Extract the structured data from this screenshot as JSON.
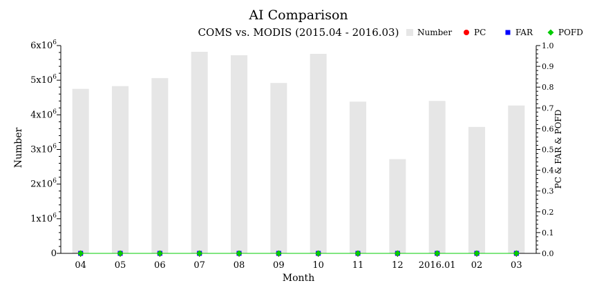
{
  "chart_data": {
    "type": "bar",
    "title": "AI Comparison",
    "subtitle": "COMS vs. MODIS (2015.04 - 2016.03)",
    "xlabel": "Month",
    "ylabel": "Number",
    "y2label": "PC & FAR & POFD",
    "categories": [
      "04",
      "05",
      "06",
      "07",
      "08",
      "09",
      "10",
      "11",
      "12",
      "2016.01",
      "02",
      "03"
    ],
    "ylim": [
      0,
      6000000
    ],
    "y_ticks": [
      {
        "value": 0,
        "base": "0",
        "exp": ""
      },
      {
        "value": 1000000,
        "base": "1x10",
        "exp": "6"
      },
      {
        "value": 2000000,
        "base": "2x10",
        "exp": "6"
      },
      {
        "value": 3000000,
        "base": "3x10",
        "exp": "6"
      },
      {
        "value": 4000000,
        "base": "4x10",
        "exp": "6"
      },
      {
        "value": 5000000,
        "base": "5x10",
        "exp": "6"
      },
      {
        "value": 6000000,
        "base": "6x10",
        "exp": "6"
      }
    ],
    "y2lim": [
      0,
      1
    ],
    "y2_ticks": [
      "0.0",
      "0.1",
      "0.2",
      "0.3",
      "0.4",
      "0.5",
      "0.6",
      "0.7",
      "0.8",
      "0.9",
      "1.0"
    ],
    "series": [
      {
        "name": "Number",
        "kind": "bar",
        "axis": "left",
        "color": "#e6e6e6",
        "values": [
          4750000,
          4830000,
          5060000,
          5820000,
          5720000,
          4920000,
          5760000,
          4380000,
          2720000,
          4400000,
          3650000,
          4270000
        ]
      },
      {
        "name": "PC",
        "kind": "point",
        "axis": "right",
        "color": "#ff0000",
        "marker": "circle",
        "values": [
          0,
          0,
          0,
          0,
          0,
          0,
          0,
          0,
          0,
          0,
          0,
          0
        ]
      },
      {
        "name": "FAR",
        "kind": "point",
        "axis": "right",
        "color": "#0000ff",
        "marker": "square",
        "values": [
          0,
          0,
          0,
          0,
          0,
          0,
          0,
          0,
          0,
          0,
          0,
          0
        ]
      },
      {
        "name": "POFD",
        "kind": "point",
        "axis": "right",
        "color": "#00cc00",
        "marker": "diamond",
        "values": [
          0,
          0,
          0,
          0,
          0,
          0,
          0,
          0,
          0,
          0,
          0,
          0
        ]
      }
    ],
    "grid": false,
    "legend_position": "top-right"
  }
}
